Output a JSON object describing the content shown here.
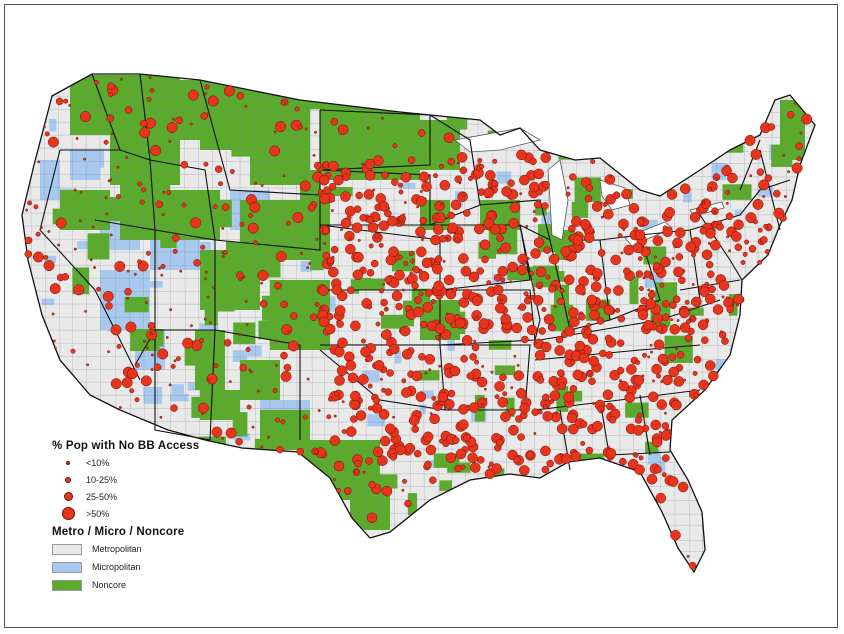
{
  "colors": {
    "metropolitan": "#e9e9e9",
    "micropolitan": "#a7c8ef",
    "noncore": "#5aaa2c",
    "dot_fill": "#e8341c",
    "dot_stroke": "#6a1208",
    "state_border": "#111111",
    "county_border": "#8a8a8a"
  },
  "legend": {
    "access_title": "% Pop with No BB Access",
    "access_classes": [
      {
        "label": "<10%",
        "icon": "tiny-dot"
      },
      {
        "label": "10-25%",
        "icon": "small-dot"
      },
      {
        "label": "25-50%",
        "icon": "medium-dot"
      },
      {
        "label": ">50%",
        "icon": "large-dot"
      }
    ],
    "type_title": "Metro / Micro / Noncore",
    "type_classes": [
      {
        "label": "Metropolitan",
        "color": "#e9e9e9"
      },
      {
        "label": "Micropolitan",
        "color": "#a7c8ef"
      },
      {
        "label": "Noncore",
        "color": "#5aaa2c"
      }
    ]
  }
}
